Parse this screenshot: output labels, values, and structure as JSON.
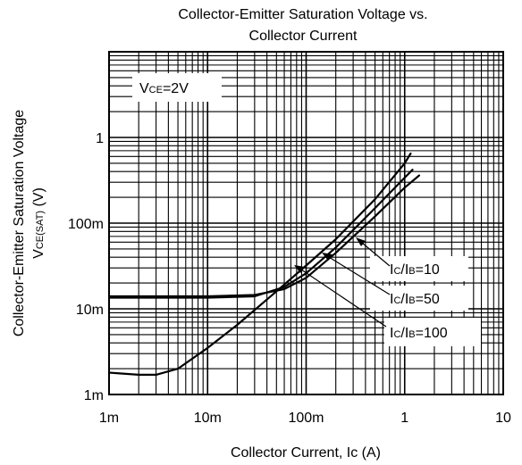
{
  "chart_data": {
    "type": "line",
    "title_line1": "Collector-Emitter Saturation Voltage vs.",
    "title_line2": "Collector Current",
    "xlabel": "Collector Current, Ic (A)",
    "ylabel": "Collector-Emitter Saturation Voltage",
    "ylabel_symbol": "V",
    "ylabel_sub": "CE(SAT)",
    "ylabel_unit": " (V)",
    "x_scale": "log",
    "y_scale": "log",
    "xlim": [
      0.001,
      10
    ],
    "ylim": [
      0.001,
      10
    ],
    "x_ticks": [
      {
        "value": 0.001,
        "label": "1m"
      },
      {
        "value": 0.01,
        "label": "10m"
      },
      {
        "value": 0.1,
        "label": "100m"
      },
      {
        "value": 1,
        "label": "1"
      },
      {
        "value": 10,
        "label": "10"
      }
    ],
    "y_ticks": [
      {
        "value": 0.001,
        "label": "1m"
      },
      {
        "value": 0.01,
        "label": "10m"
      },
      {
        "value": 0.1,
        "label": "100m"
      },
      {
        "value": 1,
        "label": "1"
      }
    ],
    "grid": true,
    "condition": {
      "prefix": "V",
      "sub": "CE",
      "suffix": "=2V"
    },
    "series": [
      {
        "name": "IC/IB=10",
        "label_prefix": "I",
        "label_sub1": "C",
        "label_mid": "/I",
        "label_sub2": "B",
        "label_suffix": "=10",
        "x": [
          0.001,
          0.01,
          0.03,
          0.06,
          0.1,
          0.2,
          0.5,
          1.0,
          1.4
        ],
        "y": [
          0.014,
          0.014,
          0.0145,
          0.017,
          0.023,
          0.045,
          0.12,
          0.26,
          0.36
        ]
      },
      {
        "name": "IC/IB=50",
        "label_prefix": "I",
        "label_sub1": "C",
        "label_mid": "/I",
        "label_sub2": "B",
        "label_suffix": "=50",
        "x": [
          0.001,
          0.01,
          0.03,
          0.06,
          0.1,
          0.2,
          0.5,
          1.0,
          1.2
        ],
        "y": [
          0.0135,
          0.0135,
          0.014,
          0.018,
          0.026,
          0.052,
          0.15,
          0.34,
          0.42
        ]
      },
      {
        "name": "IC/IB=100",
        "label_prefix": "I",
        "label_sub1": "C",
        "label_mid": "/I",
        "label_sub2": "B",
        "label_suffix": "=100",
        "x": [
          0.001,
          0.002,
          0.003,
          0.005,
          0.01,
          0.02,
          0.05,
          0.1,
          0.2,
          0.5,
          1.0,
          1.15
        ],
        "y": [
          0.0018,
          0.0017,
          0.0017,
          0.002,
          0.0035,
          0.0065,
          0.016,
          0.032,
          0.065,
          0.19,
          0.5,
          0.65
        ]
      }
    ]
  }
}
